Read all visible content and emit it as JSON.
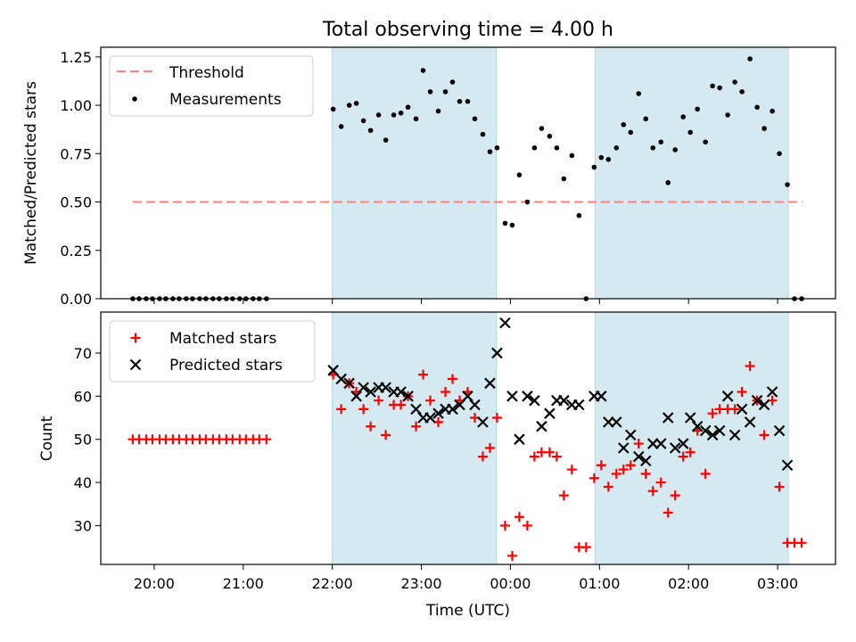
{
  "chart_data": {
    "title": "Total observing time = 4.00 h",
    "type": "scatter",
    "xlabel": "Time (UTC)",
    "x_ticks": [
      "20:00",
      "21:00",
      "22:00",
      "23:00",
      "00:00",
      "01:00",
      "02:00",
      "03:00"
    ],
    "x_tick_hours": [
      20,
      21,
      22,
      23,
      24,
      25,
      26,
      27
    ],
    "xlim_hours": [
      19.4,
      27.65
    ],
    "shaded_intervals_hours": [
      [
        22.0,
        23.84
      ],
      [
        24.95,
        27.12
      ]
    ],
    "shade_color": "#d4eaf0",
    "top": {
      "ylabel": "Matched/Predicted stars",
      "ylim": [
        0,
        1.3
      ],
      "y_ticks": [
        "0.00",
        "0.25",
        "0.50",
        "0.75",
        "1.00",
        "1.25"
      ],
      "legend": {
        "threshold": "Threshold",
        "measurements": "Measurements"
      },
      "threshold": {
        "value": 0.5,
        "x_start_hour": 19.76,
        "x_end_hour": 27.28,
        "color": "#ff7f7f"
      },
      "measurements": [
        [
          19.76,
          0
        ],
        [
          19.83,
          0
        ],
        [
          19.91,
          0
        ],
        [
          19.98,
          0
        ],
        [
          20.06,
          0
        ],
        [
          20.13,
          0
        ],
        [
          20.21,
          0
        ],
        [
          20.28,
          0
        ],
        [
          20.36,
          0
        ],
        [
          20.43,
          0
        ],
        [
          20.51,
          0
        ],
        [
          20.58,
          0
        ],
        [
          20.66,
          0
        ],
        [
          20.73,
          0
        ],
        [
          20.81,
          0
        ],
        [
          20.88,
          0
        ],
        [
          20.96,
          0
        ],
        [
          21.03,
          0
        ],
        [
          21.11,
          0
        ],
        [
          21.18,
          0
        ],
        [
          21.26,
          0
        ],
        [
          22.01,
          0.98
        ],
        [
          22.1,
          0.89
        ],
        [
          22.19,
          1.0
        ],
        [
          22.27,
          1.01
        ],
        [
          22.35,
          0.92
        ],
        [
          22.43,
          0.87
        ],
        [
          22.52,
          0.95
        ],
        [
          22.6,
          0.82
        ],
        [
          22.69,
          0.95
        ],
        [
          22.77,
          0.96
        ],
        [
          22.85,
          0.99
        ],
        [
          22.94,
          0.93
        ],
        [
          23.02,
          1.18
        ],
        [
          23.1,
          1.07
        ],
        [
          23.19,
          0.97
        ],
        [
          23.27,
          1.07
        ],
        [
          23.35,
          1.12
        ],
        [
          23.43,
          1.02
        ],
        [
          23.52,
          1.02
        ],
        [
          23.6,
          0.93
        ],
        [
          23.69,
          0.85
        ],
        [
          23.77,
          0.76
        ],
        [
          23.85,
          0.78
        ],
        [
          23.94,
          0.39
        ],
        [
          24.02,
          0.38
        ],
        [
          24.1,
          0.64
        ],
        [
          24.19,
          0.5
        ],
        [
          24.27,
          0.78
        ],
        [
          24.35,
          0.88
        ],
        [
          24.44,
          0.84
        ],
        [
          24.52,
          0.78
        ],
        [
          24.6,
          0.62
        ],
        [
          24.69,
          0.74
        ],
        [
          24.77,
          0.43
        ],
        [
          24.85,
          0.0
        ],
        [
          24.94,
          0.68
        ],
        [
          25.02,
          0.73
        ],
        [
          25.1,
          0.72
        ],
        [
          25.19,
          0.78
        ],
        [
          25.27,
          0.9
        ],
        [
          25.35,
          0.86
        ],
        [
          25.44,
          1.06
        ],
        [
          25.52,
          0.93
        ],
        [
          25.6,
          0.78
        ],
        [
          25.69,
          0.81
        ],
        [
          25.77,
          0.6
        ],
        [
          25.85,
          0.77
        ],
        [
          25.94,
          0.94
        ],
        [
          26.02,
          0.86
        ],
        [
          26.1,
          0.98
        ],
        [
          26.19,
          0.81
        ],
        [
          26.27,
          1.1
        ],
        [
          26.35,
          1.09
        ],
        [
          26.44,
          0.95
        ],
        [
          26.52,
          1.12
        ],
        [
          26.6,
          1.07
        ],
        [
          26.69,
          1.24
        ],
        [
          26.77,
          0.99
        ],
        [
          26.85,
          0.88
        ],
        [
          26.94,
          0.97
        ],
        [
          27.02,
          0.75
        ],
        [
          27.11,
          0.59
        ],
        [
          27.19,
          0
        ],
        [
          27.27,
          0
        ]
      ]
    },
    "bottom": {
      "ylabel": "Count",
      "ylim": [
        21,
        79.5
      ],
      "y_ticks": [
        "30",
        "40",
        "50",
        "60",
        "70"
      ],
      "legend": {
        "matched": "Matched stars",
        "predicted": "Predicted stars"
      },
      "matched_color": "#ff0000",
      "predicted_color": "#000000",
      "matched": [
        [
          19.76,
          50
        ],
        [
          19.83,
          50
        ],
        [
          19.91,
          50
        ],
        [
          19.98,
          50
        ],
        [
          20.06,
          50
        ],
        [
          20.13,
          50
        ],
        [
          20.21,
          50
        ],
        [
          20.28,
          50
        ],
        [
          20.36,
          50
        ],
        [
          20.43,
          50
        ],
        [
          20.51,
          50
        ],
        [
          20.58,
          50
        ],
        [
          20.66,
          50
        ],
        [
          20.73,
          50
        ],
        [
          20.81,
          50
        ],
        [
          20.88,
          50
        ],
        [
          20.96,
          50
        ],
        [
          21.03,
          50
        ],
        [
          21.11,
          50
        ],
        [
          21.18,
          50
        ],
        [
          21.26,
          50
        ],
        [
          22.01,
          65
        ],
        [
          22.1,
          57
        ],
        [
          22.19,
          63
        ],
        [
          22.27,
          61
        ],
        [
          22.35,
          57
        ],
        [
          22.43,
          53
        ],
        [
          22.52,
          59
        ],
        [
          22.6,
          51
        ],
        [
          22.69,
          58
        ],
        [
          22.77,
          58
        ],
        [
          22.85,
          60
        ],
        [
          22.94,
          53
        ],
        [
          23.02,
          65
        ],
        [
          23.1,
          59
        ],
        [
          23.19,
          54
        ],
        [
          23.27,
          61
        ],
        [
          23.35,
          64
        ],
        [
          23.43,
          59
        ],
        [
          23.52,
          61
        ],
        [
          23.6,
          55
        ],
        [
          23.69,
          46
        ],
        [
          23.77,
          48
        ],
        [
          23.85,
          55
        ],
        [
          23.94,
          30
        ],
        [
          24.02,
          23
        ],
        [
          24.1,
          32
        ],
        [
          24.19,
          30
        ],
        [
          24.27,
          46
        ],
        [
          24.35,
          47
        ],
        [
          24.44,
          47
        ],
        [
          24.52,
          46
        ],
        [
          24.6,
          37
        ],
        [
          24.69,
          43
        ],
        [
          24.77,
          25
        ],
        [
          24.85,
          25
        ],
        [
          24.94,
          41
        ],
        [
          25.02,
          44
        ],
        [
          25.1,
          39
        ],
        [
          25.19,
          42
        ],
        [
          25.27,
          43
        ],
        [
          25.35,
          44
        ],
        [
          25.44,
          49
        ],
        [
          25.52,
          42
        ],
        [
          25.6,
          38
        ],
        [
          25.69,
          40
        ],
        [
          25.77,
          33
        ],
        [
          25.85,
          37
        ],
        [
          25.94,
          46
        ],
        [
          26.02,
          47
        ],
        [
          26.1,
          52
        ],
        [
          26.19,
          42
        ],
        [
          26.27,
          56
        ],
        [
          26.35,
          57
        ],
        [
          26.44,
          57
        ],
        [
          26.52,
          57
        ],
        [
          26.6,
          61
        ],
        [
          26.69,
          67
        ],
        [
          26.77,
          59
        ],
        [
          26.85,
          51
        ],
        [
          26.94,
          59
        ],
        [
          27.02,
          39
        ],
        [
          27.11,
          26
        ],
        [
          27.19,
          26
        ],
        [
          27.27,
          26
        ]
      ],
      "predicted": [
        [
          22.01,
          66
        ],
        [
          22.1,
          64
        ],
        [
          22.19,
          63
        ],
        [
          22.27,
          60
        ],
        [
          22.35,
          62
        ],
        [
          22.43,
          61
        ],
        [
          22.52,
          62
        ],
        [
          22.6,
          62
        ],
        [
          22.69,
          61
        ],
        [
          22.77,
          61
        ],
        [
          22.85,
          60
        ],
        [
          22.94,
          57
        ],
        [
          23.02,
          55
        ],
        [
          23.1,
          55
        ],
        [
          23.19,
          56
        ],
        [
          23.27,
          57
        ],
        [
          23.35,
          57
        ],
        [
          23.43,
          58
        ],
        [
          23.52,
          60
        ],
        [
          23.6,
          58
        ],
        [
          23.69,
          54
        ],
        [
          23.77,
          63
        ],
        [
          23.85,
          70
        ],
        [
          23.94,
          77
        ],
        [
          24.02,
          60
        ],
        [
          24.1,
          50
        ],
        [
          24.19,
          60
        ],
        [
          24.27,
          59
        ],
        [
          24.35,
          53
        ],
        [
          24.44,
          56
        ],
        [
          24.52,
          59
        ],
        [
          24.6,
          59
        ],
        [
          24.69,
          58
        ],
        [
          24.77,
          58
        ],
        [
          24.85,
          null
        ],
        [
          24.94,
          60
        ],
        [
          25.02,
          60
        ],
        [
          25.1,
          54
        ],
        [
          25.19,
          54
        ],
        [
          25.27,
          48
        ],
        [
          25.35,
          51
        ],
        [
          25.44,
          46
        ],
        [
          25.52,
          45
        ],
        [
          25.6,
          49
        ],
        [
          25.69,
          49
        ],
        [
          25.77,
          55
        ],
        [
          25.85,
          48
        ],
        [
          25.94,
          49
        ],
        [
          26.02,
          55
        ],
        [
          26.1,
          53
        ],
        [
          26.19,
          52
        ],
        [
          26.27,
          51
        ],
        [
          26.35,
          52
        ],
        [
          26.44,
          60
        ],
        [
          26.52,
          51
        ],
        [
          26.6,
          57
        ],
        [
          26.69,
          54
        ],
        [
          26.77,
          59
        ],
        [
          26.85,
          58
        ],
        [
          26.94,
          61
        ],
        [
          27.02,
          52
        ],
        [
          27.11,
          44
        ]
      ]
    }
  }
}
